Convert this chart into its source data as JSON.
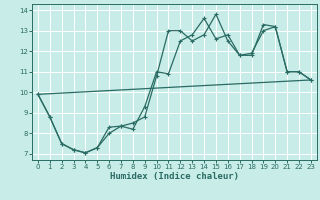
{
  "xlabel": "Humidex (Indice chaleur)",
  "bg_color": "#c8ece8",
  "grid_color": "#ffffff",
  "line_color": "#2a6b63",
  "xlim": [
    -0.5,
    23.5
  ],
  "ylim": [
    6.7,
    14.3
  ],
  "xticks": [
    0,
    1,
    2,
    3,
    4,
    5,
    6,
    7,
    8,
    9,
    10,
    11,
    12,
    13,
    14,
    15,
    16,
    17,
    18,
    19,
    20,
    21,
    22,
    23
  ],
  "yticks": [
    7,
    8,
    9,
    10,
    11,
    12,
    13,
    14
  ],
  "line1_x": [
    0,
    1,
    2,
    3,
    4,
    5,
    6,
    7,
    8,
    9,
    10,
    11,
    12,
    13,
    14,
    15,
    16,
    17,
    18,
    19,
    20,
    21,
    22,
    23
  ],
  "line1_y": [
    9.9,
    8.8,
    7.5,
    7.2,
    7.05,
    7.3,
    8.3,
    8.35,
    8.5,
    8.8,
    10.8,
    13.0,
    13.0,
    12.5,
    12.8,
    13.8,
    12.5,
    11.8,
    11.8,
    13.3,
    13.2,
    11.0,
    11.0,
    10.6
  ],
  "line2_x": [
    0,
    1,
    2,
    3,
    4,
    5,
    6,
    7,
    8,
    9,
    10,
    11,
    12,
    13,
    14,
    15,
    16,
    17,
    18,
    19,
    20,
    21,
    22,
    23
  ],
  "line2_y": [
    9.9,
    8.8,
    7.5,
    7.2,
    7.05,
    7.3,
    8.0,
    8.35,
    8.2,
    9.3,
    11.0,
    10.9,
    12.5,
    12.8,
    13.6,
    12.6,
    12.8,
    11.8,
    11.9,
    13.0,
    13.2,
    11.0,
    11.0,
    10.6
  ],
  "line3_x": [
    0,
    23
  ],
  "line3_y": [
    9.9,
    10.6
  ]
}
